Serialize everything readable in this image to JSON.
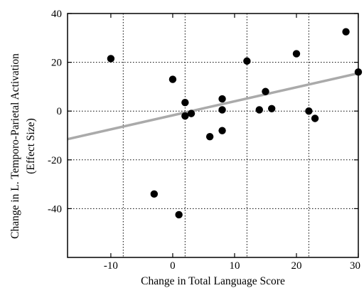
{
  "chart_data": {
    "type": "scatter",
    "title": "",
    "xlabel": "Change in Total Language Score",
    "ylabel_line1": "Change in L. Temporo-Parietal Activation",
    "ylabel_line2": "(Effect Size)",
    "xlim": [
      -17,
      30
    ],
    "ylim": [
      -60,
      40
    ],
    "x_ticks": [
      -10,
      0,
      10,
      20,
      30
    ],
    "y_ticks": [
      -40,
      -20,
      0,
      20,
      40
    ],
    "x_tick_labels": [
      "-10",
      "0",
      "10",
      "20",
      "30"
    ],
    "y_tick_labels": [
      "-40",
      "-20",
      "0",
      "20",
      "40"
    ],
    "grid_x": [
      -8,
      2,
      12,
      22
    ],
    "grid_y": [
      -40,
      -20,
      0,
      20
    ],
    "grid": true,
    "grid_style": "dotted",
    "points": [
      {
        "x": -10,
        "y": 21.5
      },
      {
        "x": -3,
        "y": -34
      },
      {
        "x": 0,
        "y": 13
      },
      {
        "x": 1,
        "y": -42.5
      },
      {
        "x": 2,
        "y": 3.5
      },
      {
        "x": 2,
        "y": -2
      },
      {
        "x": 3,
        "y": -1
      },
      {
        "x": 6,
        "y": -10.5
      },
      {
        "x": 8,
        "y": 5
      },
      {
        "x": 8,
        "y": 0.5
      },
      {
        "x": 8,
        "y": -8
      },
      {
        "x": 12,
        "y": 20.5
      },
      {
        "x": 14,
        "y": 0.5
      },
      {
        "x": 15,
        "y": 8
      },
      {
        "x": 16,
        "y": 1
      },
      {
        "x": 20,
        "y": 23.5
      },
      {
        "x": 22,
        "y": 0
      },
      {
        "x": 23,
        "y": -3
      },
      {
        "x": 28,
        "y": 32.5
      },
      {
        "x": 30,
        "y": 16
      }
    ],
    "fit_line": {
      "x": [
        -17,
        30
      ],
      "y": [
        -11.5,
        15.5
      ]
    },
    "point_color": "#000000",
    "fit_line_color": "#aaaaaa"
  }
}
